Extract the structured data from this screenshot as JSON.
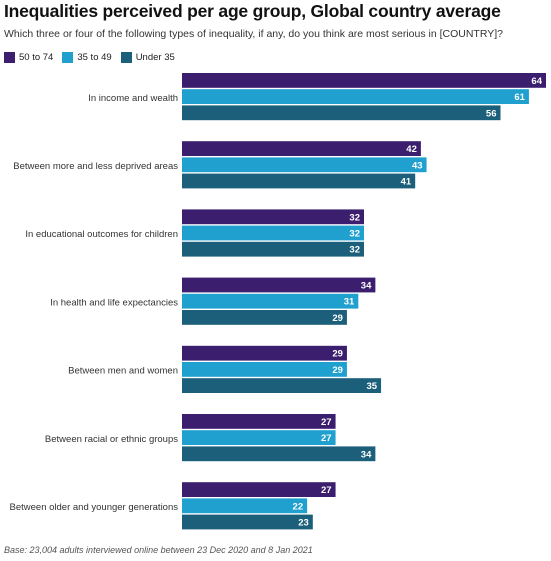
{
  "chart_data": {
    "type": "bar",
    "orientation": "horizontal",
    "title": "Inequalities perceived per age group, Global country average",
    "subtitle": "Which three or four of the following types of inequality, if any, do you think are most serious in [COUNTRY]?",
    "categories": [
      "In income and wealth",
      "Between more and less deprived areas",
      "In educational outcomes for children",
      "In health and life expectancies",
      "Between men and women",
      "Between racial or ethnic groups",
      "Between older and younger generations"
    ],
    "series": [
      {
        "name": "50 to 74",
        "color": "#3b1f6e",
        "values": [
          64,
          42,
          32,
          34,
          29,
          27,
          27
        ]
      },
      {
        "name": "35 to 49",
        "color": "#1fa0cf",
        "values": [
          61,
          43,
          32,
          31,
          29,
          27,
          22
        ]
      },
      {
        "name": "Under 35",
        "color": "#1c5f7a",
        "values": [
          56,
          41,
          32,
          29,
          35,
          34,
          23
        ]
      }
    ],
    "xlim": [
      0,
      64
    ],
    "legend_position": "top-left",
    "grid": false,
    "data_labels": true,
    "footnote": "Base: 23,004 adults interviewed online between 23 Dec 2020 and 8 Jan 2021"
  }
}
